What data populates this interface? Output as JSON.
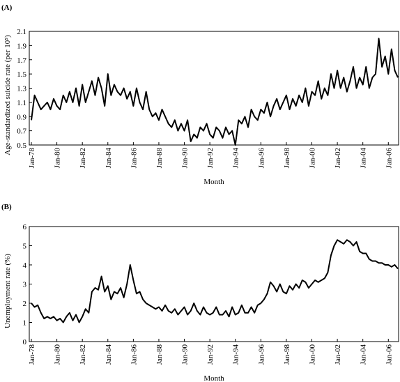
{
  "chart_data": [
    {
      "type": "line",
      "panel_label": "(A)",
      "xlabel": "Month",
      "ylabel": "Age-standardized suicide rate (per 10⁵)",
      "x": [
        "Jan-78",
        "Apr-78",
        "Jul-78",
        "Oct-78",
        "Jan-79",
        "Apr-79",
        "Jul-79",
        "Oct-79",
        "Jan-80",
        "Apr-80",
        "Jul-80",
        "Oct-80",
        "Jan-81",
        "Apr-81",
        "Jul-81",
        "Oct-81",
        "Jan-82",
        "Apr-82",
        "Jul-82",
        "Oct-82",
        "Jan-83",
        "Apr-83",
        "Jul-83",
        "Oct-83",
        "Jan-84",
        "Apr-84",
        "Jul-84",
        "Oct-84",
        "Jan-85",
        "Apr-85",
        "Jul-85",
        "Oct-85",
        "Jan-86",
        "Apr-86",
        "Jul-86",
        "Oct-86",
        "Jan-87",
        "Apr-87",
        "Jul-87",
        "Oct-87",
        "Jan-88",
        "Apr-88",
        "Jul-88",
        "Oct-88",
        "Jan-89",
        "Apr-89",
        "Jul-89",
        "Oct-89",
        "Jan-90",
        "Apr-90",
        "Jul-90",
        "Oct-90",
        "Jan-91",
        "Apr-91",
        "Jul-91",
        "Oct-91",
        "Jan-92",
        "Apr-92",
        "Jul-92",
        "Oct-92",
        "Jan-93",
        "Apr-93",
        "Jul-93",
        "Oct-93",
        "Jan-94",
        "Apr-94",
        "Jul-94",
        "Oct-94",
        "Jan-95",
        "Apr-95",
        "Jul-95",
        "Oct-95",
        "Jan-96",
        "Apr-96",
        "Jul-96",
        "Oct-96",
        "Jan-97",
        "Apr-97",
        "Jul-97",
        "Oct-97",
        "Jan-98",
        "Apr-98",
        "Jul-98",
        "Oct-98",
        "Jan-99",
        "Apr-99",
        "Jul-99",
        "Oct-99",
        "Jan-00",
        "Apr-00",
        "Jul-00",
        "Oct-00",
        "Jan-01",
        "Apr-01",
        "Jul-01",
        "Oct-01",
        "Jan-02",
        "Apr-02",
        "Jul-02",
        "Oct-02",
        "Jan-03",
        "Apr-03",
        "Jul-03",
        "Oct-03",
        "Jan-04",
        "Apr-04",
        "Jul-04",
        "Oct-04",
        "Jan-05",
        "Apr-05",
        "Jul-05",
        "Oct-05",
        "Jan-06",
        "Apr-06",
        "Jul-06",
        "Oct-06"
      ],
      "xticks": [
        "Jan-78",
        "Jan-80",
        "Jan-82",
        "Jan-84",
        "Jan-86",
        "Jan-88",
        "Jan-90",
        "Jan-92",
        "Jan-94",
        "Jan-96",
        "Jan-98",
        "Jan-00",
        "Jan-02",
        "Jan-04",
        "Jan-06"
      ],
      "ylim": [
        0.5,
        2.1
      ],
      "yticks": [
        0.5,
        0.7,
        0.9,
        1.1,
        1.3,
        1.5,
        1.7,
        1.9,
        2.1
      ],
      "color": "#000000",
      "values": [
        0.85,
        1.2,
        1.1,
        1.0,
        1.05,
        1.1,
        1.0,
        1.15,
        1.05,
        1.0,
        1.2,
        1.1,
        1.25,
        1.1,
        1.3,
        1.05,
        1.35,
        1.1,
        1.25,
        1.4,
        1.2,
        1.45,
        1.3,
        1.05,
        1.5,
        1.2,
        1.35,
        1.25,
        1.2,
        1.3,
        1.15,
        1.25,
        1.05,
        1.3,
        1.1,
        1.0,
        1.25,
        1.0,
        0.9,
        0.95,
        0.85,
        1.0,
        0.9,
        0.8,
        0.75,
        0.85,
        0.7,
        0.8,
        0.7,
        0.85,
        0.55,
        0.65,
        0.6,
        0.75,
        0.7,
        0.8,
        0.65,
        0.6,
        0.75,
        0.7,
        0.6,
        0.75,
        0.65,
        0.7,
        0.5,
        0.85,
        0.8,
        0.9,
        0.75,
        1.0,
        0.9,
        0.85,
        1.0,
        0.95,
        1.1,
        0.9,
        1.05,
        1.15,
        1.0,
        1.1,
        1.2,
        1.0,
        1.15,
        1.05,
        1.2,
        1.1,
        1.3,
        1.05,
        1.25,
        1.2,
        1.4,
        1.15,
        1.3,
        1.2,
        1.5,
        1.3,
        1.55,
        1.3,
        1.45,
        1.25,
        1.4,
        1.6,
        1.3,
        1.45,
        1.35,
        1.6,
        1.3,
        1.45,
        1.5,
        2.0,
        1.6,
        1.75,
        1.5,
        1.85,
        1.55,
        1.45
      ]
    },
    {
      "type": "line",
      "panel_label": "(B)",
      "xlabel": "Month",
      "ylabel": "Unemployment rate (%)",
      "x": [
        "Jan-78",
        "Apr-78",
        "Jul-78",
        "Oct-78",
        "Jan-79",
        "Apr-79",
        "Jul-79",
        "Oct-79",
        "Jan-80",
        "Apr-80",
        "Jul-80",
        "Oct-80",
        "Jan-81",
        "Apr-81",
        "Jul-81",
        "Oct-81",
        "Jan-82",
        "Apr-82",
        "Jul-82",
        "Oct-82",
        "Jan-83",
        "Apr-83",
        "Jul-83",
        "Oct-83",
        "Jan-84",
        "Apr-84",
        "Jul-84",
        "Oct-84",
        "Jan-85",
        "Apr-85",
        "Jul-85",
        "Oct-85",
        "Jan-86",
        "Apr-86",
        "Jul-86",
        "Oct-86",
        "Jan-87",
        "Apr-87",
        "Jul-87",
        "Oct-87",
        "Jan-88",
        "Apr-88",
        "Jul-88",
        "Oct-88",
        "Jan-89",
        "Apr-89",
        "Jul-89",
        "Oct-89",
        "Jan-90",
        "Apr-90",
        "Jul-90",
        "Oct-90",
        "Jan-91",
        "Apr-91",
        "Jul-91",
        "Oct-91",
        "Jan-92",
        "Apr-92",
        "Jul-92",
        "Oct-92",
        "Jan-93",
        "Apr-93",
        "Jul-93",
        "Oct-93",
        "Jan-94",
        "Apr-94",
        "Jul-94",
        "Oct-94",
        "Jan-95",
        "Apr-95",
        "Jul-95",
        "Oct-95",
        "Jan-96",
        "Apr-96",
        "Jul-96",
        "Oct-96",
        "Jan-97",
        "Apr-97",
        "Jul-97",
        "Oct-97",
        "Jan-98",
        "Apr-98",
        "Jul-98",
        "Oct-98",
        "Jan-99",
        "Apr-99",
        "Jul-99",
        "Oct-99",
        "Jan-00",
        "Apr-00",
        "Jul-00",
        "Oct-00",
        "Jan-01",
        "Apr-01",
        "Jul-01",
        "Oct-01",
        "Jan-02",
        "Apr-02",
        "Jul-02",
        "Oct-02",
        "Jan-03",
        "Apr-03",
        "Jul-03",
        "Oct-03",
        "Jan-04",
        "Apr-04",
        "Jul-04",
        "Oct-04",
        "Jan-05",
        "Apr-05",
        "Jul-05",
        "Oct-05",
        "Jan-06",
        "Apr-06",
        "Jul-06",
        "Oct-06"
      ],
      "xticks": [
        "Jan-78",
        "Jan-80",
        "Jan-82",
        "Jan-84",
        "Jan-86",
        "Jan-88",
        "Jan-90",
        "Jan-92",
        "Jan-94",
        "Jan-96",
        "Jan-98",
        "Jan-00",
        "Jan-02",
        "Jan-04",
        "Jan-06"
      ],
      "ylim": [
        0,
        6
      ],
      "yticks": [
        0,
        1,
        2,
        3,
        4,
        5,
        6
      ],
      "color": "#000000",
      "values": [
        2.0,
        1.8,
        1.9,
        1.5,
        1.2,
        1.3,
        1.2,
        1.3,
        1.1,
        1.2,
        1.0,
        1.3,
        1.5,
        1.1,
        1.4,
        1.0,
        1.3,
        1.7,
        1.5,
        2.6,
        2.8,
        2.7,
        3.4,
        2.6,
        2.9,
        2.2,
        2.6,
        2.5,
        2.8,
        2.3,
        3.0,
        4.0,
        3.2,
        2.5,
        2.6,
        2.2,
        2.0,
        1.9,
        1.8,
        1.7,
        1.8,
        1.6,
        1.9,
        1.6,
        1.5,
        1.7,
        1.4,
        1.6,
        1.8,
        1.4,
        1.6,
        2.0,
        1.6,
        1.4,
        1.8,
        1.5,
        1.4,
        1.5,
        1.8,
        1.4,
        1.4,
        1.6,
        1.3,
        1.8,
        1.4,
        1.5,
        1.9,
        1.5,
        1.5,
        1.8,
        1.5,
        1.9,
        2.0,
        2.2,
        2.5,
        3.1,
        2.9,
        2.6,
        3.0,
        2.6,
        2.5,
        2.9,
        2.7,
        3.0,
        2.8,
        3.2,
        3.1,
        2.8,
        3.0,
        3.2,
        3.1,
        3.2,
        3.3,
        3.6,
        4.5,
        5.0,
        5.3,
        5.2,
        5.1,
        5.3,
        5.2,
        5.0,
        5.2,
        4.7,
        4.6,
        4.6,
        4.3,
        4.2,
        4.2,
        4.1,
        4.1,
        4.0,
        4.0,
        3.9,
        4.0,
        3.8
      ]
    }
  ]
}
